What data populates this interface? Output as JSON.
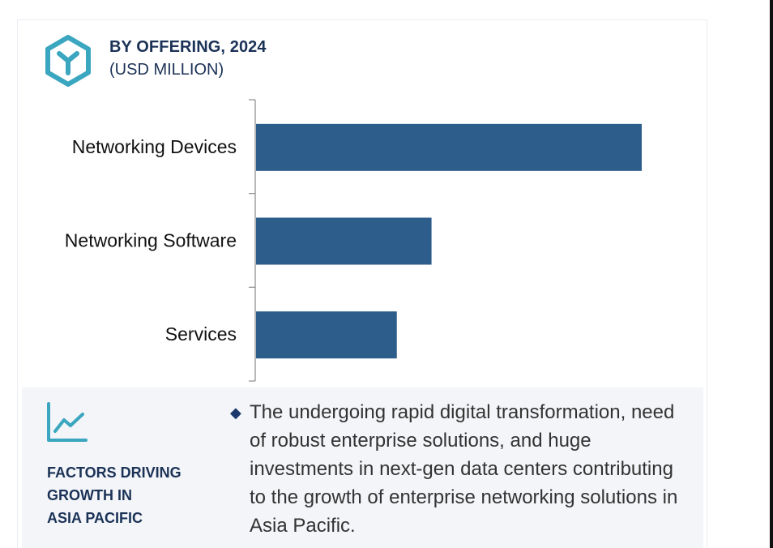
{
  "header": {
    "title": "BY OFFERING, 2024",
    "subtitle": "(USD MILLION)",
    "logo_icon": "cube-logo-icon",
    "accent_color": "#3aa6bf"
  },
  "chart_data": {
    "type": "bar",
    "orientation": "horizontal",
    "title": "BY OFFERING, 2024",
    "subtitle": "(USD MILLION)",
    "categories": [
      "Networking Devices",
      "Networking Software",
      "Services"
    ],
    "values": [
      100,
      45.5,
      36.5
    ],
    "value_note": "relative bar lengths (no numeric axis shown)",
    "bar_color": "#2d5d8b",
    "grid": false,
    "legend": "none"
  },
  "factors": {
    "icon": "trend-line-icon",
    "title_lines": [
      "FACTORS DRIVING",
      "GROWTH IN",
      "ASIA PACIFIC"
    ],
    "bullet_icon": "diamond-bullet-icon",
    "text": "The undergoing rapid digital transformation, need of robust enterprise solutions, and huge investments in next-gen data centers contributing to the growth of enterprise networking solutions in Asia Pacific."
  }
}
